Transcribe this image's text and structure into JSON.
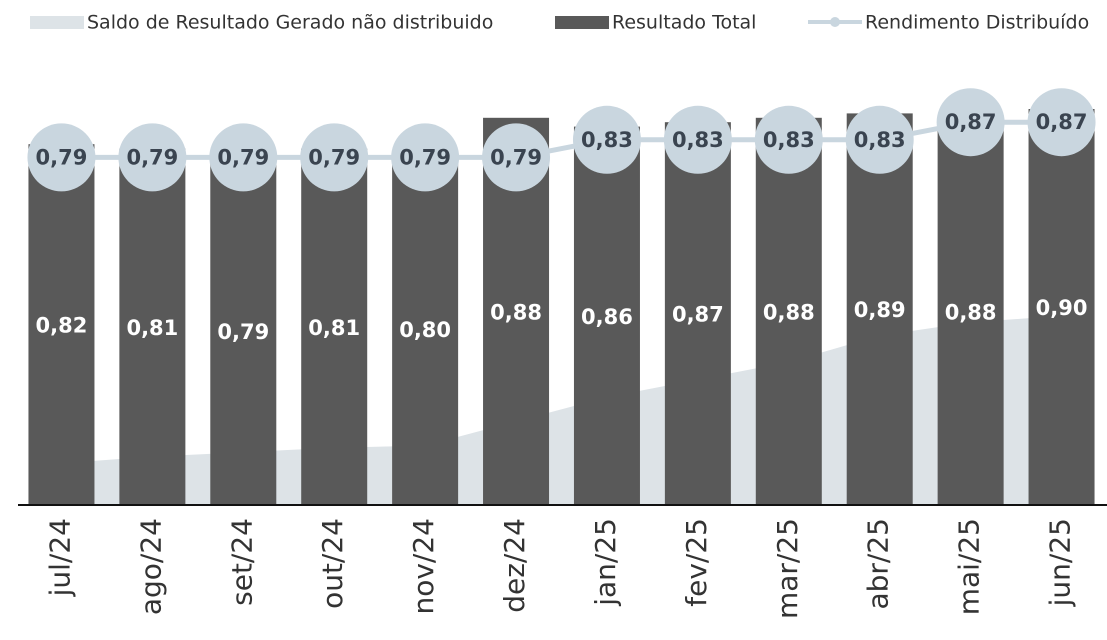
{
  "chart_data": {
    "type": "bar",
    "categories": [
      "jul/24",
      "ago/24",
      "set/24",
      "out/24",
      "nov/24",
      "dez/24",
      "jan/25",
      "fev/25",
      "mar/25",
      "abr/25",
      "mai/25",
      "jun/25"
    ],
    "ylim": [
      0,
      1
    ],
    "series": [
      {
        "name": "Saldo de Resultado Gerado não distribuido",
        "type": "area",
        "color": "#dde3e7",
        "values": [
          0.095,
          0.11,
          0.12,
          0.13,
          0.135,
          0.19,
          0.245,
          0.285,
          0.325,
          0.385,
          0.415,
          0.43
        ]
      },
      {
        "name": "Resultado Total",
        "type": "bar",
        "color": "#595959",
        "values": [
          0.82,
          0.81,
          0.79,
          0.81,
          0.8,
          0.88,
          0.86,
          0.87,
          0.88,
          0.89,
          0.88,
          0.9
        ],
        "value_labels": [
          "0,82",
          "0,81",
          "0,79",
          "0,81",
          "0,80",
          "0,88",
          "0,86",
          "0,87",
          "0,88",
          "0,89",
          "0,88",
          "0,90"
        ]
      },
      {
        "name": "Rendimento Distribuído",
        "type": "line",
        "color": "#c9d6df",
        "values": [
          0.79,
          0.79,
          0.79,
          0.79,
          0.79,
          0.79,
          0.83,
          0.83,
          0.83,
          0.83,
          0.87,
          0.87
        ],
        "value_labels": [
          "0,79",
          "0,79",
          "0,79",
          "0,79",
          "0,79",
          "0,79",
          "0,83",
          "0,83",
          "0,83",
          "0,83",
          "0,87",
          "0,87"
        ]
      }
    ]
  }
}
